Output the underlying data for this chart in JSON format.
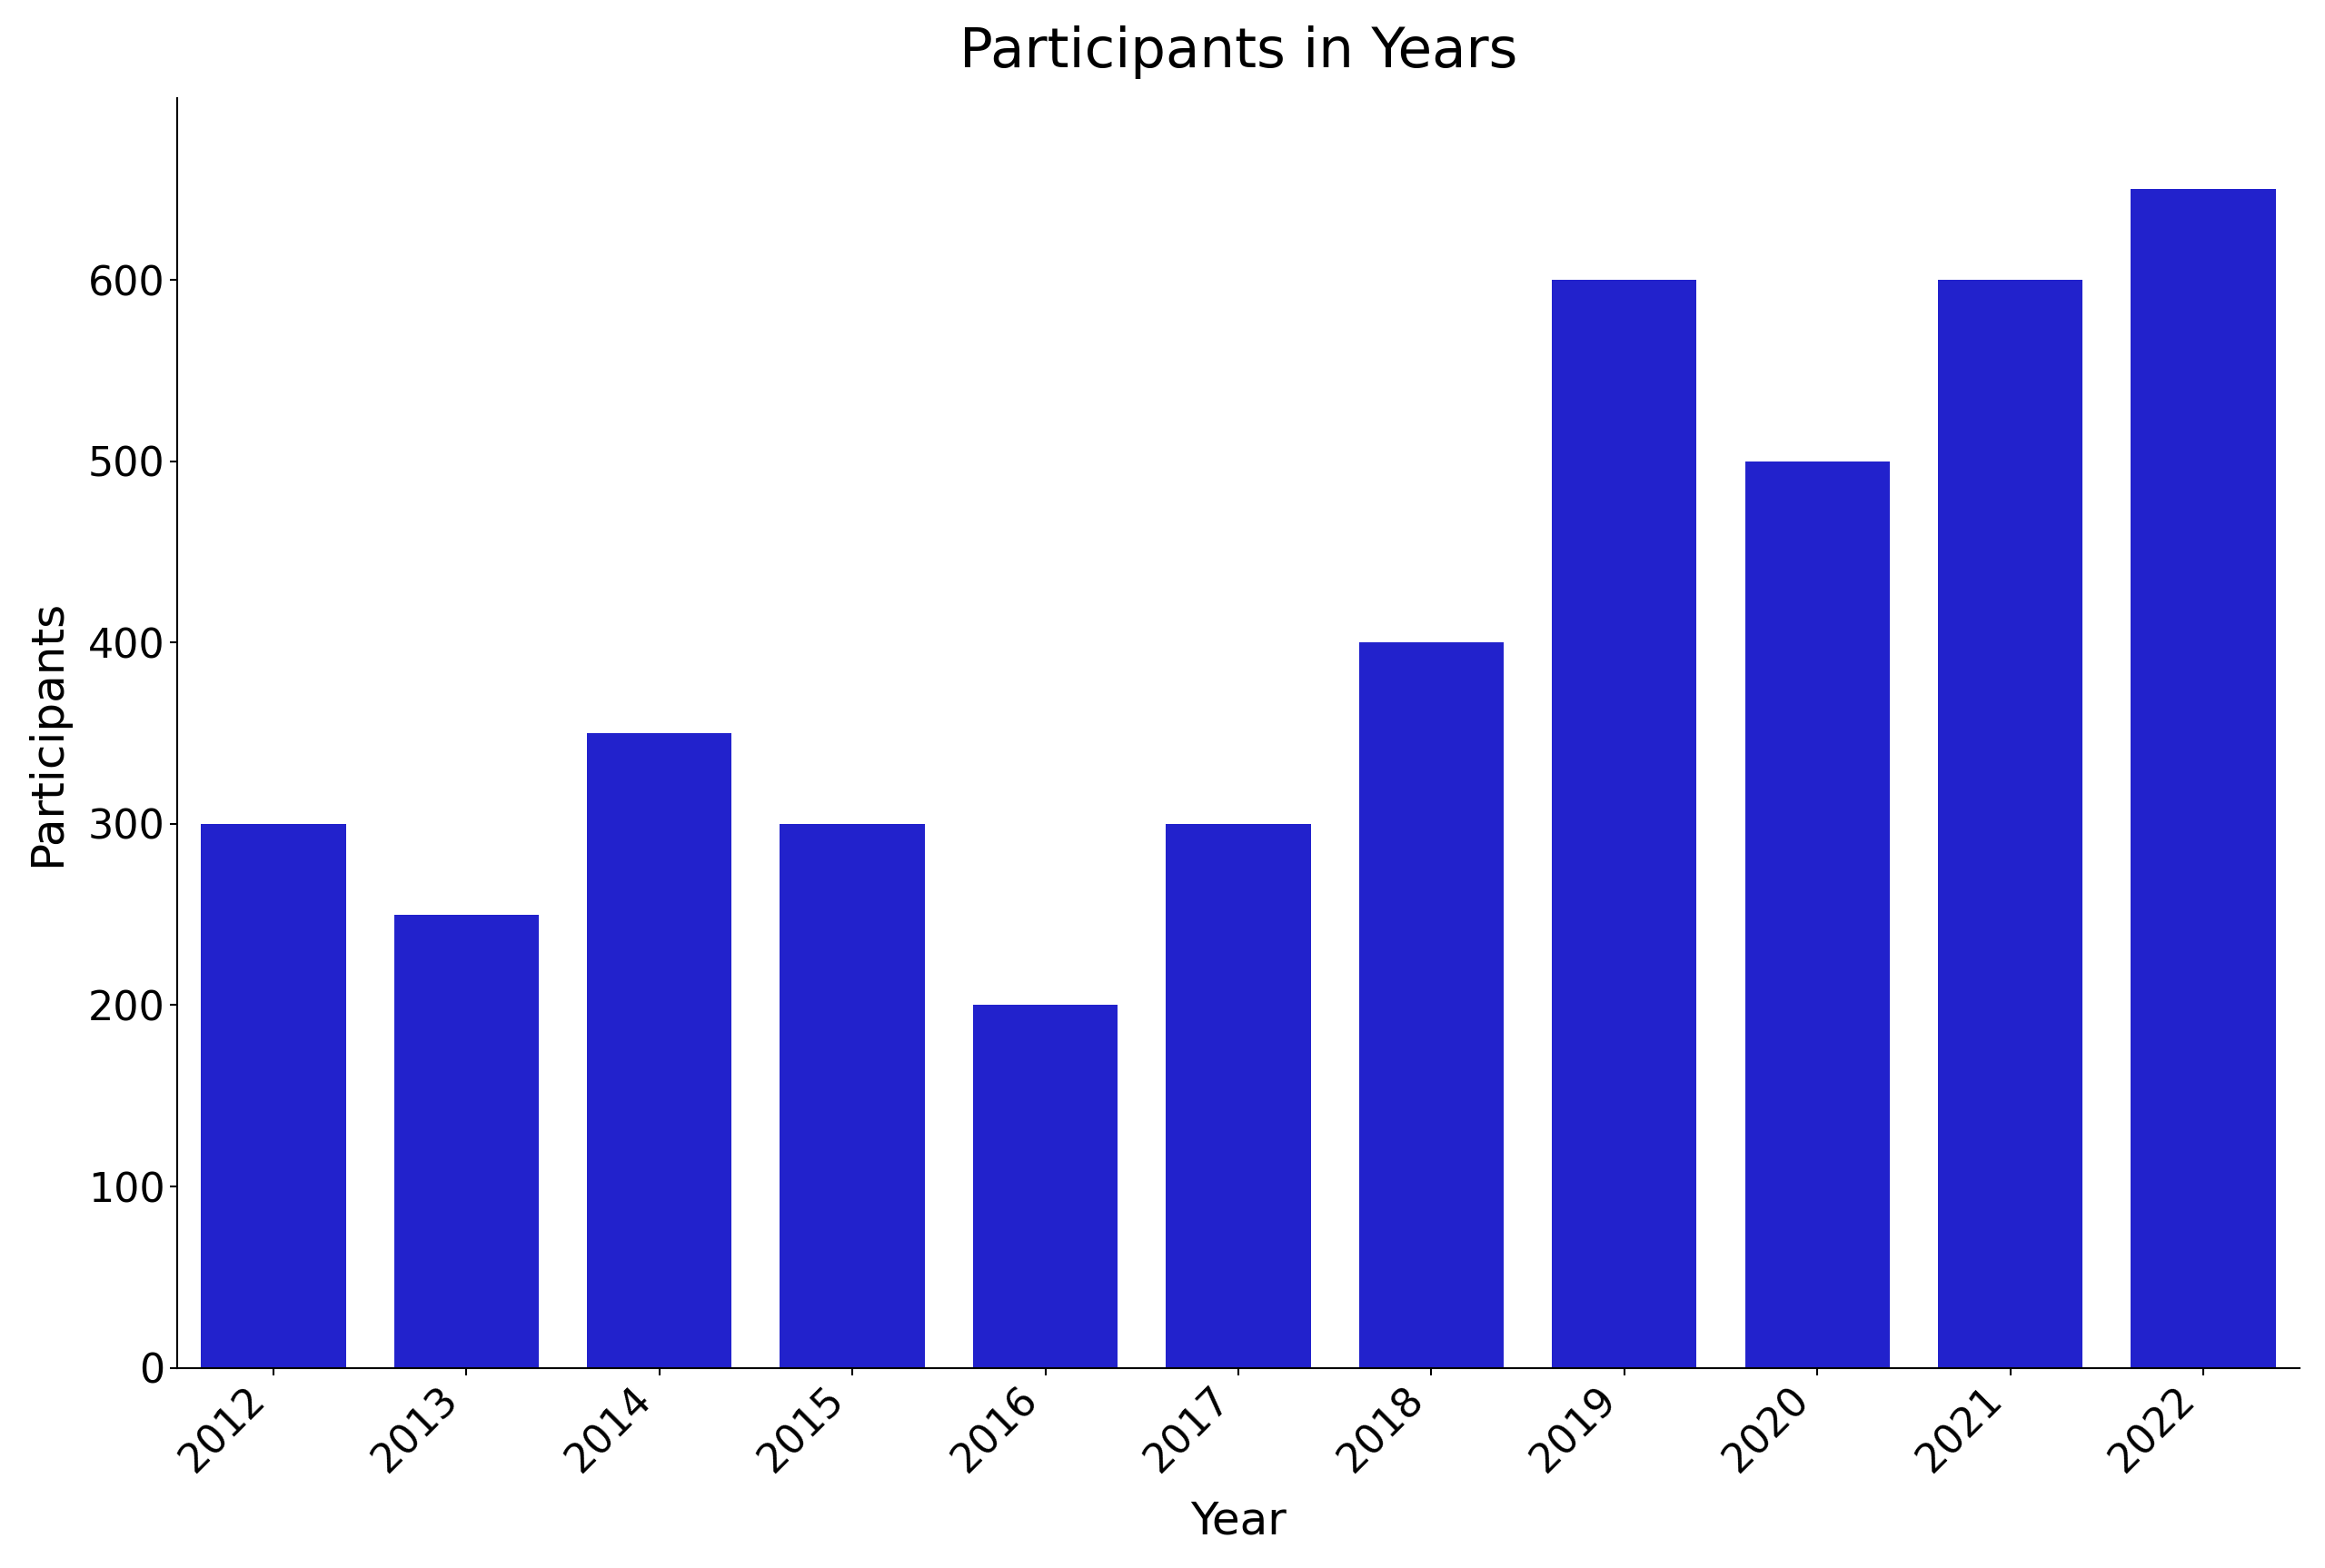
{
  "title": "Participants in Years",
  "xlabel": "Year",
  "ylabel": "Participants",
  "years": [
    "2012",
    "2013",
    "2014",
    "2015",
    "2016",
    "2017",
    "2018",
    "2019",
    "2020",
    "2021",
    "2022"
  ],
  "values": [
    300,
    250,
    350,
    300,
    200,
    300,
    400,
    600,
    500,
    600,
    650
  ],
  "bar_color": "#2222CC",
  "ylim": [
    0,
    700
  ],
  "yticks": [
    0,
    100,
    200,
    300,
    400,
    500,
    600
  ],
  "title_fontsize": 44,
  "label_fontsize": 36,
  "tick_fontsize": 32,
  "bar_width": 0.75,
  "background_color": "#ffffff"
}
